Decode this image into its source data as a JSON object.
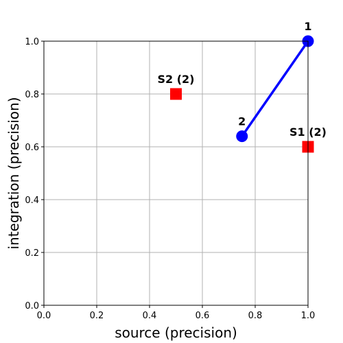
{
  "chart_data": {
    "type": "scatter",
    "xlabel": "source (precision)",
    "ylabel": "integration (precision)",
    "xlim": [
      0.0,
      1.0
    ],
    "ylim": [
      0.0,
      1.0
    ],
    "grid": true,
    "xticks": [
      "0.0",
      "0.2",
      "0.4",
      "0.6",
      "0.8",
      "1.0"
    ],
    "yticks": [
      "0.0",
      "0.2",
      "0.4",
      "0.6",
      "0.8",
      "1.0"
    ],
    "series": [
      {
        "marker": "circle",
        "color": "#0000ff",
        "connected": true,
        "points": [
          {
            "x": 1.0,
            "y": 1.0,
            "label": "1"
          },
          {
            "x": 0.75,
            "y": 0.64,
            "label": "2"
          }
        ]
      },
      {
        "marker": "square",
        "color": "#ff0000",
        "connected": false,
        "points": [
          {
            "x": 0.5,
            "y": 0.8,
            "label": "S2 (2)"
          },
          {
            "x": 1.0,
            "y": 0.6,
            "label": "S1 (2)"
          }
        ]
      }
    ]
  }
}
